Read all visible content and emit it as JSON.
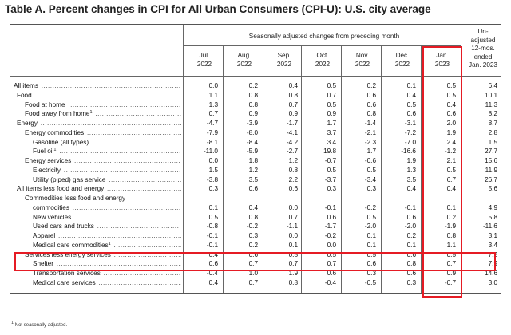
{
  "title": "Table A. Percent changes in CPI for All Urban Consumers (CPI-U): U.S. city average",
  "header": {
    "group_label": "Seasonally adjusted changes from preceding month",
    "months": [
      {
        "line1": "Jul.",
        "line2": "2022"
      },
      {
        "line1": "Aug.",
        "line2": "2022"
      },
      {
        "line1": "Sep.",
        "line2": "2022"
      },
      {
        "line1": "Oct.",
        "line2": "2022"
      },
      {
        "line1": "Nov.",
        "line2": "2022"
      },
      {
        "line1": "Dec.",
        "line2": "2022"
      },
      {
        "line1": "Jan.",
        "line2": "2023"
      }
    ],
    "unadjusted": [
      "Un-",
      "adjusted",
      "12-mos.",
      "ended",
      "Jan. 2023"
    ]
  },
  "rows": [
    {
      "label": "All items",
      "indent": 0,
      "values": [
        "0.0",
        "0.2",
        "0.4",
        "0.5",
        "0.2",
        "0.1",
        "0.5",
        "6.4"
      ]
    },
    {
      "label": "Food",
      "indent": 1,
      "values": [
        "1.1",
        "0.8",
        "0.8",
        "0.7",
        "0.6",
        "0.4",
        "0.5",
        "10.1"
      ]
    },
    {
      "label": "Food at home",
      "indent": 2,
      "values": [
        "1.3",
        "0.8",
        "0.7",
        "0.5",
        "0.6",
        "0.5",
        "0.4",
        "11.3"
      ]
    },
    {
      "label": "Food away from home",
      "sup": "1",
      "indent": 2,
      "values": [
        "0.7",
        "0.9",
        "0.9",
        "0.9",
        "0.8",
        "0.6",
        "0.6",
        "8.2"
      ]
    },
    {
      "label": "Energy",
      "indent": 1,
      "values": [
        "-4.7",
        "-3.9",
        "-1.7",
        "1.7",
        "-1.4",
        "-3.1",
        "2.0",
        "8.7"
      ]
    },
    {
      "label": "Energy commodities",
      "indent": 2,
      "values": [
        "-7.9",
        "-8.0",
        "-4.1",
        "3.7",
        "-2.1",
        "-7.2",
        "1.9",
        "2.8"
      ]
    },
    {
      "label": "Gasoline (all types)",
      "indent": 3,
      "values": [
        "-8.1",
        "-8.4",
        "-4.2",
        "3.4",
        "-2.3",
        "-7.0",
        "2.4",
        "1.5"
      ]
    },
    {
      "label": "Fuel oil",
      "sup": "1",
      "indent": 3,
      "values": [
        "-11.0",
        "-5.9",
        "-2.7",
        "19.8",
        "1.7",
        "-16.6",
        "-1.2",
        "27.7"
      ]
    },
    {
      "label": "Energy services",
      "indent": 2,
      "values": [
        "0.0",
        "1.8",
        "1.2",
        "-0.7",
        "-0.6",
        "1.9",
        "2.1",
        "15.6"
      ]
    },
    {
      "label": "Electricity",
      "indent": 3,
      "values": [
        "1.5",
        "1.2",
        "0.8",
        "0.5",
        "0.5",
        "1.3",
        "0.5",
        "11.9"
      ]
    },
    {
      "label": "Utility (piped) gas service",
      "indent": 3,
      "values": [
        "-3.8",
        "3.5",
        "2.2",
        "-3.7",
        "-3.4",
        "3.5",
        "6.7",
        "26.7"
      ]
    },
    {
      "label": "All items less food and energy",
      "indent": 1,
      "values": [
        "0.3",
        "0.6",
        "0.6",
        "0.3",
        "0.3",
        "0.4",
        "0.4",
        "5.6"
      ]
    },
    {
      "label": "Commodities less food and energy",
      "indent": 2,
      "values": [
        "",
        "",
        "",
        "",
        "",
        "",
        "",
        ""
      ]
    },
    {
      "label": "commodities",
      "indent": 3,
      "values": [
        "0.1",
        "0.4",
        "0.0",
        "-0.1",
        "-0.2",
        "-0.1",
        "0.1",
        "4.9"
      ]
    },
    {
      "label": "New vehicles",
      "indent": 3,
      "values": [
        "0.5",
        "0.8",
        "0.7",
        "0.6",
        "0.5",
        "0.6",
        "0.2",
        "5.8"
      ]
    },
    {
      "label": "Used cars and trucks",
      "indent": 3,
      "values": [
        "-0.8",
        "-0.2",
        "-1.1",
        "-1.7",
        "-2.0",
        "-2.0",
        "-1.9",
        "-11.6"
      ]
    },
    {
      "label": "Apparel",
      "indent": 3,
      "values": [
        "-0.1",
        "0.3",
        "0.0",
        "-0.2",
        "0.1",
        "0.2",
        "0.8",
        "3.1"
      ]
    },
    {
      "label": "Medical care commodities",
      "sup": "1",
      "indent": 3,
      "values": [
        "-0.1",
        "0.2",
        "0.1",
        "0.0",
        "0.1",
        "0.1",
        "1.1",
        "3.4"
      ]
    },
    {
      "label": "Services less energy services",
      "indent": 2,
      "values": [
        "0.4",
        "0.6",
        "0.8",
        "0.5",
        "0.5",
        "0.6",
        "0.5",
        "7.2"
      ]
    },
    {
      "label": "Shelter",
      "indent": 3,
      "values": [
        "0.6",
        "0.7",
        "0.7",
        "0.7",
        "0.6",
        "0.8",
        "0.7",
        "7.9"
      ]
    },
    {
      "label": "Transportation services",
      "indent": 3,
      "values": [
        "-0.4",
        "1.0",
        "1.9",
        "0.6",
        "0.3",
        "0.6",
        "0.9",
        "14.6"
      ]
    },
    {
      "label": "Medical care services",
      "indent": 3,
      "values": [
        "0.4",
        "0.7",
        "0.8",
        "-0.4",
        "-0.5",
        "0.3",
        "-0.7",
        "3.0"
      ]
    }
  ],
  "footnote": {
    "marker": "1",
    "text": "Not seasonally adjusted."
  },
  "colors": {
    "highlight": "#e51b24",
    "grid": "#666666"
  }
}
